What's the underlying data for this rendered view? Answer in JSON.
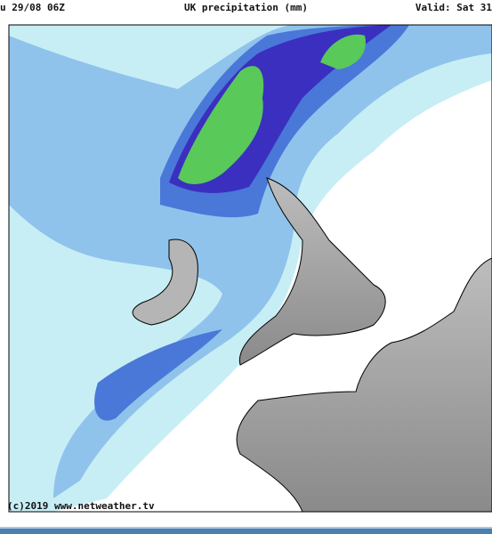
{
  "header": {
    "left": "u 29/08 06Z",
    "title": "UK precipitation (mm)",
    "right": "Valid: Sat 31"
  },
  "footer": {
    "credit": "(c)2019 www.netweather.tv"
  }
}
